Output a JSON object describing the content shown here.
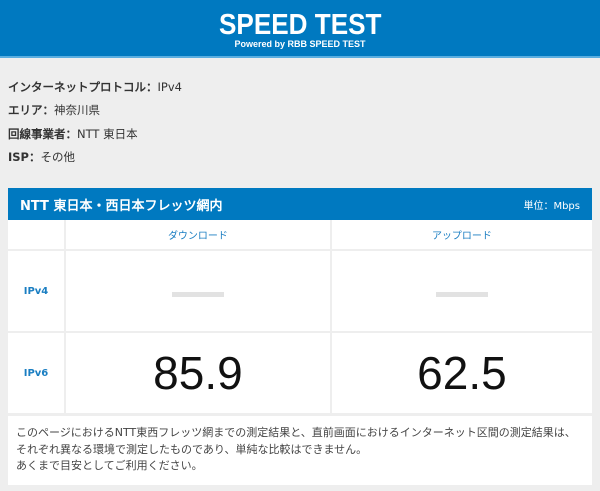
{
  "header": {
    "title": "SPEED TEST",
    "subtitle": "Powered by RBB SPEED TEST",
    "color": "#0079c0"
  },
  "info": [
    {
      "label": "インターネットプロトコル：",
      "value": "IPv4"
    },
    {
      "label": "エリア：",
      "value": "神奈川県"
    },
    {
      "label": "回線事業者：",
      "value": "NTT 東日本"
    },
    {
      "label": "ISP：",
      "value": "その他"
    }
  ],
  "results": {
    "title": "NTT 東日本・西日本フレッツ網内",
    "unit": "単位：Mbps",
    "columns": [
      "ダウンロード",
      "アップロード"
    ],
    "rows": [
      {
        "label": "IPv4",
        "download": "",
        "upload": ""
      },
      {
        "label": "IPv6",
        "download": "85.9",
        "upload": "62.5"
      }
    ]
  },
  "note": [
    "このページにおけるNTT東西フレッツ網までの測定結果と、直前画面におけるインターネット区間の測定結果は、それぞれ異なる環境で測定したものであり、単純な比較はできません。",
    "あくまで目安としてご利用ください。"
  ]
}
